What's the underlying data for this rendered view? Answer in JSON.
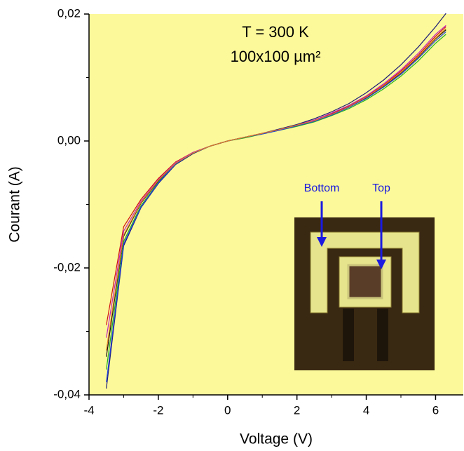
{
  "chart_data": {
    "type": "line",
    "x_label": "Voltage (V)",
    "y_label": "Courant (A)",
    "annotations": [
      "T = 300 K",
      "100x100 µm²"
    ],
    "inset_labels": [
      "Bottom",
      "Top"
    ],
    "x": [
      -3.5,
      -3,
      -2.5,
      -2,
      -1.5,
      -1,
      -0.5,
      0,
      0.5,
      1,
      1.5,
      2,
      2.5,
      3,
      3.5,
      4,
      4.5,
      5,
      5.5,
      6,
      6.3
    ],
    "series": [
      {
        "name": "",
        "color": "#1a1a7a",
        "values": [
          -0.039,
          -0.0165,
          -0.0105,
          -0.0067,
          -0.0037,
          -0.002,
          -0.0008,
          0,
          0.0006,
          0.0012,
          0.0019,
          0.0026,
          0.0035,
          0.0046,
          0.0059,
          0.0076,
          0.0096,
          0.012,
          0.0148,
          0.018,
          0.0201
        ]
      },
      {
        "name": "",
        "color": "#d01010",
        "values": [
          -0.029,
          -0.0135,
          -0.0092,
          -0.0059,
          -0.0033,
          -0.0018,
          -0.0008,
          0,
          0.0006,
          0.0012,
          0.0018,
          0.0025,
          0.0033,
          0.0043,
          0.0055,
          0.007,
          0.0088,
          0.011,
          0.0135,
          0.0165,
          0.018
        ]
      },
      {
        "name": "",
        "color": "#111111",
        "values": [
          -0.034,
          -0.015,
          -0.0098,
          -0.0063,
          -0.0035,
          -0.0019,
          -0.0008,
          0,
          0.0006,
          0.0012,
          0.0018,
          0.0024,
          0.0032,
          0.0042,
          0.0054,
          0.0068,
          0.0086,
          0.0107,
          0.0132,
          0.0161,
          0.0175
        ]
      },
      {
        "name": "",
        "color": "#20b020",
        "values": [
          -0.036,
          -0.0158,
          -0.0102,
          -0.0065,
          -0.0036,
          -0.0019,
          -0.0008,
          0,
          0.0005,
          0.0011,
          0.0017,
          0.0023,
          0.003,
          0.004,
          0.0051,
          0.0065,
          0.0082,
          0.0102,
          0.0126,
          0.0154,
          0.0168
        ]
      },
      {
        "name": "",
        "color": "#c020c0",
        "values": [
          -0.031,
          -0.0142,
          -0.0095,
          -0.0061,
          -0.0034,
          -0.0018,
          -0.0008,
          0,
          0.0006,
          0.0012,
          0.0018,
          0.0025,
          0.0033,
          0.0044,
          0.0056,
          0.0071,
          0.009,
          0.0112,
          0.0138,
          0.0168,
          0.0182
        ]
      },
      {
        "name": "",
        "color": "#2040e0",
        "values": [
          -0.038,
          -0.0162,
          -0.0104,
          -0.0066,
          -0.0036,
          -0.0019,
          -0.0008,
          0,
          0.0006,
          0.0011,
          0.0017,
          0.0024,
          0.0031,
          0.0041,
          0.0053,
          0.0067,
          0.0085,
          0.0105,
          0.013,
          0.0158,
          0.0172
        ]
      },
      {
        "name": "",
        "color": "#e08020",
        "values": [
          -0.033,
          -0.0148,
          -0.0097,
          -0.0062,
          -0.0035,
          -0.0019,
          -0.0008,
          0,
          0.0006,
          0.0012,
          0.0018,
          0.0025,
          0.0032,
          0.0042,
          0.0054,
          0.0069,
          0.0087,
          0.0108,
          0.0133,
          0.0162,
          0.0177
        ]
      }
    ],
    "xlim": [
      -4,
      6.8
    ],
    "xticks": [
      -4,
      -2,
      0,
      2,
      4,
      6
    ],
    "ylim": [
      -0.04,
      0.02
    ],
    "yticks": [
      {
        "value": -0.04,
        "label": "-0,04"
      },
      {
        "value": -0.02,
        "label": "-0,02"
      },
      {
        "value": 0,
        "label": "0,00"
      },
      {
        "value": 0.02,
        "label": "0,02"
      }
    ],
    "background": "#fcf99a"
  }
}
